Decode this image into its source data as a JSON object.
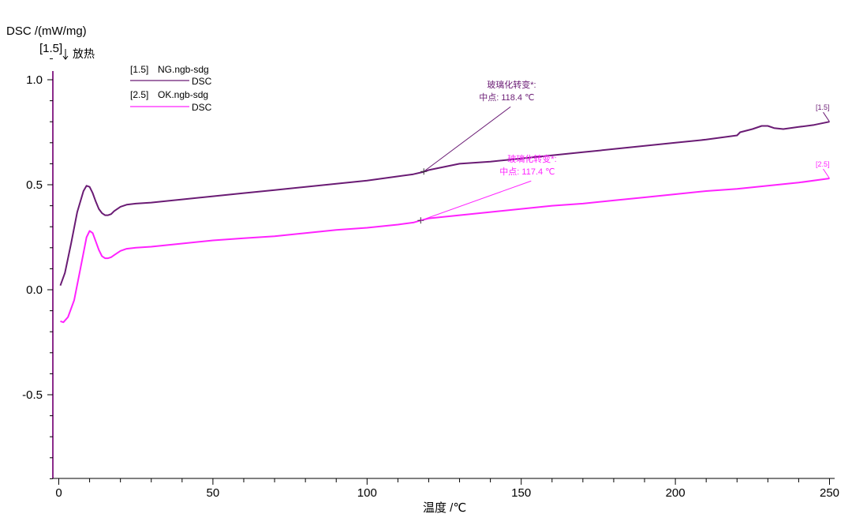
{
  "chart_data": {
    "type": "line",
    "ylabel": "DSC /(mW/mg)",
    "xlabel": "温度 /℃",
    "y_top_tag": "[1.5]",
    "exo_label": "放热",
    "xlim": [
      0,
      250
    ],
    "ylim": [
      -0.9,
      1.1
    ],
    "x_ticks": [
      0,
      50,
      100,
      150,
      200,
      250
    ],
    "x_tick_labels": [
      "0",
      "50",
      "100",
      "150",
      "200",
      "250"
    ],
    "y_ticks": [
      1.0,
      0.5,
      0.0,
      -0.5
    ],
    "y_tick_labels": [
      "1.0",
      "0.5",
      "0.0",
      "-0.5"
    ],
    "legend": [
      {
        "tag": "[1.5]",
        "file": "NG.ngb-sdg",
        "signal": "DSC",
        "color": "#6a1b74"
      },
      {
        "tag": "[2.5]",
        "file": "OK.ngb-sdg",
        "signal": "DSC",
        "color": "#ff22ff"
      }
    ],
    "series": [
      {
        "name": "[1.5] NG.ngb-sdg DSC",
        "color": "#6a1b74",
        "end_tag": "[1.5]",
        "x": [
          0.5,
          2,
          4,
          6,
          8,
          9,
          10,
          11,
          12,
          13,
          14,
          15,
          16,
          17,
          18,
          20,
          22,
          25,
          30,
          40,
          50,
          60,
          70,
          80,
          90,
          100,
          110,
          115,
          118,
          120,
          125,
          130,
          140,
          150,
          160,
          170,
          180,
          190,
          200,
          210,
          220,
          221,
          225,
          228,
          230,
          232,
          235,
          240,
          245,
          250
        ],
        "y": [
          0.02,
          0.08,
          0.22,
          0.37,
          0.47,
          0.495,
          0.49,
          0.46,
          0.42,
          0.385,
          0.365,
          0.355,
          0.355,
          0.36,
          0.375,
          0.395,
          0.405,
          0.41,
          0.415,
          0.43,
          0.445,
          0.46,
          0.475,
          0.49,
          0.505,
          0.52,
          0.54,
          0.55,
          0.56,
          0.57,
          0.585,
          0.6,
          0.61,
          0.625,
          0.64,
          0.655,
          0.67,
          0.685,
          0.7,
          0.715,
          0.735,
          0.75,
          0.765,
          0.78,
          0.78,
          0.77,
          0.765,
          0.775,
          0.785,
          0.8
        ]
      },
      {
        "name": "[2.5] OK.ngb-sdg DSC",
        "color": "#ff22ff",
        "end_tag": "[2.5]",
        "x": [
          0.5,
          1.5,
          3,
          5,
          7,
          9,
          10,
          11,
          12,
          13,
          14,
          15,
          16,
          17,
          18,
          20,
          22,
          25,
          30,
          40,
          50,
          60,
          70,
          80,
          90,
          100,
          110,
          115,
          117.4,
          120,
          130,
          140,
          150,
          160,
          170,
          180,
          190,
          200,
          210,
          220,
          230,
          240,
          250
        ],
        "y": [
          -0.15,
          -0.155,
          -0.13,
          -0.05,
          0.1,
          0.25,
          0.28,
          0.27,
          0.23,
          0.19,
          0.16,
          0.15,
          0.15,
          0.155,
          0.165,
          0.185,
          0.195,
          0.2,
          0.205,
          0.22,
          0.235,
          0.245,
          0.255,
          0.27,
          0.285,
          0.295,
          0.31,
          0.32,
          0.33,
          0.34,
          0.355,
          0.37,
          0.385,
          0.4,
          0.41,
          0.425,
          0.44,
          0.455,
          0.47,
          0.48,
          0.495,
          0.51,
          0.53
        ]
      }
    ],
    "annotations": [
      {
        "series": 0,
        "title": "玻璃化转变*:",
        "text": "中点:  118.4 ℃",
        "x": 118.4,
        "y": 0.563,
        "color": "#6a1b74"
      },
      {
        "series": 1,
        "title": "玻璃化转变*:",
        "text": "中点:  117.4 ℃",
        "x": 117.4,
        "y": 0.33,
        "color": "#ff22ff"
      }
    ]
  }
}
